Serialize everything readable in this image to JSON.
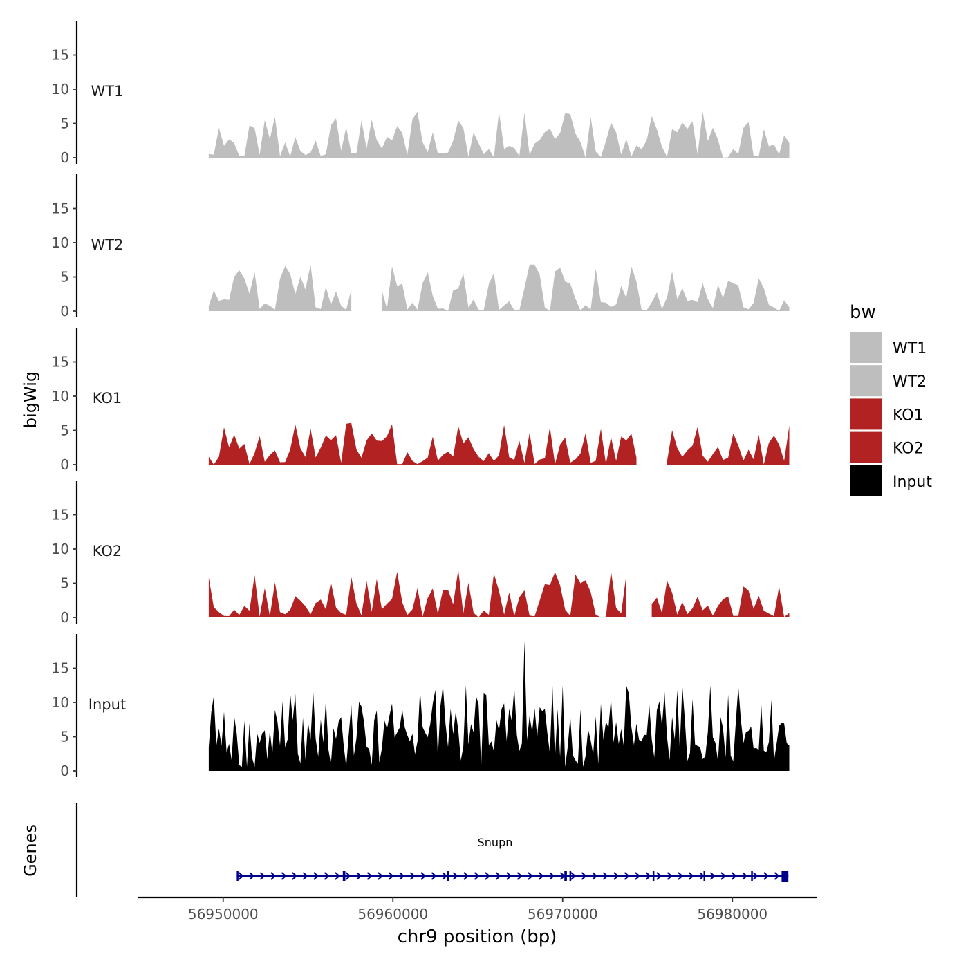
{
  "chart_data": {
    "type": "area",
    "xlabel": "chr9 position (bp)",
    "ylabel": "bigWig",
    "genes_label": "Genes",
    "xlim": [
      56945000,
      56985000
    ],
    "x_ticks": [
      56950000,
      56960000,
      56970000,
      56980000
    ],
    "x_tick_labels": [
      "56950000",
      "56960000",
      "56970000",
      "56980000"
    ],
    "ylim": [
      0,
      20
    ],
    "y_ticks": [
      0,
      5,
      10,
      15
    ],
    "y_tick_labels": [
      "0",
      "5",
      "10",
      "15"
    ],
    "legend": {
      "title": "bw",
      "position": "right",
      "entries": [
        {
          "label": "WT1",
          "color": "#bebebe"
        },
        {
          "label": "WT2",
          "color": "#bebebe"
        },
        {
          "label": "KO1",
          "color": "#b22222"
        },
        {
          "label": "KO2",
          "color": "#b22222"
        },
        {
          "label": "Input",
          "color": "#000000"
        }
      ]
    },
    "series": [
      {
        "name": "WT1",
        "color": "#bebebe",
        "x_start": 56949150,
        "x_end": 56983400,
        "step": 300,
        "ymax": 6.7,
        "seed": 11,
        "gap_prob": 0.08
      },
      {
        "name": "WT2",
        "color": "#bebebe",
        "x_start": 56949150,
        "x_end": 56983400,
        "step": 300,
        "ymax": 6.8,
        "seed": 23,
        "gap_prob": 0.08
      },
      {
        "name": "KO1",
        "color": "#b22222",
        "x_start": 56949150,
        "x_end": 56983400,
        "step": 300,
        "ymax": 6.1,
        "seed": 37,
        "gap_prob": 0.1
      },
      {
        "name": "KO2",
        "color": "#b22222",
        "x_start": 56949150,
        "x_end": 56983400,
        "step": 300,
        "ymax": 7.0,
        "seed": 53,
        "gap_prob": 0.08
      },
      {
        "name": "Input",
        "color": "#000000",
        "x_start": 56949150,
        "x_end": 56983400,
        "step": 150,
        "ymax": 12.5,
        "seed": 71,
        "gap_prob": 0.0,
        "peak": {
          "x": 56967800,
          "y": 19.0
        }
      }
    ],
    "gene": {
      "name": "Snupn",
      "color": "#00008b",
      "strand": "+",
      "start": 56950800,
      "end": 56983300,
      "exons": [
        {
          "start": 56950800,
          "end": 56950900
        },
        {
          "start": 56957050,
          "end": 56957200
        },
        {
          "start": 56963200,
          "end": 56963300
        },
        {
          "start": 56970100,
          "end": 56970250
        },
        {
          "start": 56970400,
          "end": 56970500
        },
        {
          "start": 56975300,
          "end": 56975400
        },
        {
          "start": 56978300,
          "end": 56978400
        },
        {
          "start": 56981100,
          "end": 56981200
        },
        {
          "start": 56982900,
          "end": 56983300
        }
      ]
    }
  }
}
